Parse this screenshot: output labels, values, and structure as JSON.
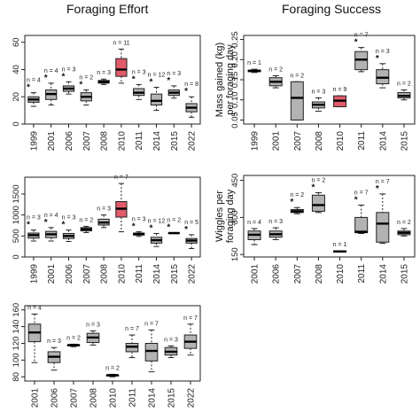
{
  "columns": {
    "left": "Foraging Effort",
    "right": "Foraging Success"
  },
  "colors": {
    "box": "#b3b3b3",
    "highlight": "#e05a6a",
    "line": "#222222"
  },
  "chart_data": [
    {
      "id": "p1",
      "type": "boxplot",
      "ylabel": "",
      "ylim": [
        0,
        65
      ],
      "yticks": [
        0,
        20,
        40,
        60
      ],
      "categories": [
        "1999",
        "2001",
        "2006",
        "2007",
        "2008",
        "2010",
        "2011",
        "2014",
        "2015",
        "2022"
      ],
      "boxes": [
        {
          "min": 13,
          "q1": 16,
          "median": 18,
          "q3": 20,
          "max": 23,
          "n": "n = 4",
          "star": true
        },
        {
          "min": 14,
          "q1": 18,
          "median": 22,
          "q3": 25,
          "max": 30,
          "n": "n = 4",
          "star": true
        },
        {
          "min": 22,
          "q1": 24,
          "median": 26,
          "q3": 28,
          "max": 31,
          "n": "n = 3",
          "star": true
        },
        {
          "min": 14,
          "q1": 17,
          "median": 20,
          "q3": 23,
          "max": 25,
          "n": "n = 2",
          "star": true
        },
        {
          "min": 29,
          "q1": 30,
          "median": 31,
          "q3": 32,
          "max": 33,
          "n": "n = 3",
          "star": false
        },
        {
          "min": 30,
          "q1": 35,
          "median": 40,
          "q3": 48,
          "max": 55,
          "n": "n = 11",
          "star": false,
          "highlight": true
        },
        {
          "min": 18,
          "q1": 21,
          "median": 23,
          "q3": 26,
          "max": 29,
          "n": "n = 3",
          "star": true
        },
        {
          "min": 10,
          "q1": 14,
          "median": 17,
          "q3": 22,
          "max": 27,
          "n": "n = 12",
          "star": true
        },
        {
          "min": 19,
          "q1": 21,
          "median": 23,
          "q3": 25,
          "max": 28,
          "n": "n = 3",
          "star": true
        },
        {
          "min": 5,
          "q1": 9,
          "median": 12,
          "q3": 15,
          "max": 20,
          "n": "n = 8",
          "star": true
        }
      ]
    },
    {
      "id": "p2",
      "type": "boxplot",
      "ylabel": "",
      "ylim": [
        0,
        1900
      ],
      "yticks": [
        0,
        500,
        1000,
        1500
      ],
      "categories": [
        "1999",
        "2001",
        "2006",
        "2007",
        "2008",
        "2010",
        "2011",
        "2014",
        "2015",
        "2022"
      ],
      "boxes": [
        {
          "min": 380,
          "q1": 450,
          "median": 520,
          "q3": 570,
          "max": 640,
          "n": "n = 3",
          "star": true
        },
        {
          "min": 380,
          "q1": 460,
          "median": 540,
          "q3": 610,
          "max": 700,
          "n": "n = 4",
          "star": true
        },
        {
          "min": 370,
          "q1": 440,
          "median": 500,
          "q3": 560,
          "max": 640,
          "n": "n = 3",
          "star": true
        },
        {
          "min": 580,
          "q1": 620,
          "median": 660,
          "q3": 700,
          "max": 730,
          "n": "n = 2",
          "star": false
        },
        {
          "min": 700,
          "q1": 760,
          "median": 820,
          "q3": 900,
          "max": 1000,
          "n": "n = 3",
          "star": false
        },
        {
          "min": 600,
          "q1": 950,
          "median": 1150,
          "q3": 1320,
          "max": 1750,
          "n": "n = 7",
          "star": false,
          "highlight": true
        },
        {
          "min": 490,
          "q1": 520,
          "median": 550,
          "q3": 570,
          "max": 600,
          "n": "n = 3",
          "star": true
        },
        {
          "min": 250,
          "q1": 330,
          "median": 400,
          "q3": 470,
          "max": 560,
          "n": "n = 12",
          "star": true
        },
        {
          "min": 560,
          "q1": 565,
          "median": 570,
          "q3": 575,
          "max": 580,
          "n": "n = 2",
          "star": true
        },
        {
          "min": 200,
          "q1": 330,
          "median": 390,
          "q3": 440,
          "max": 530,
          "n": "n = 5",
          "star": true
        }
      ]
    },
    {
      "id": "p3",
      "type": "boxplot",
      "ylabel": "",
      "ylim": [
        75,
        165
      ],
      "yticks": [
        80,
        100,
        120,
        140,
        160
      ],
      "categories": [
        "2001",
        "2006",
        "2007",
        "2008",
        "2010",
        "2011",
        "2014",
        "2015",
        "2022"
      ],
      "boxes": [
        {
          "min": 97,
          "q1": 122,
          "median": 133,
          "q3": 143,
          "max": 155,
          "n": "n = 4",
          "star": false
        },
        {
          "min": 88,
          "q1": 97,
          "median": 104,
          "q3": 110,
          "max": 115,
          "n": "n = 3",
          "star": false
        },
        {
          "min": 116,
          "q1": 117,
          "median": 118,
          "q3": 118,
          "max": 119,
          "n": "n = 2",
          "star": false
        },
        {
          "min": 118,
          "q1": 121,
          "median": 127,
          "q3": 132,
          "max": 135,
          "n": "n = 3",
          "star": false
        },
        {
          "min": 80,
          "q1": 81,
          "median": 82,
          "q3": 82,
          "max": 83,
          "n": "n = 2",
          "star": false,
          "highlight": true
        },
        {
          "min": 103,
          "q1": 110,
          "median": 116,
          "q3": 120,
          "max": 130,
          "n": "n = 7",
          "star": false
        },
        {
          "min": 86,
          "q1": 99,
          "median": 111,
          "q3": 120,
          "max": 136,
          "n": "n = 7",
          "star": false
        },
        {
          "min": 103,
          "q1": 106,
          "median": 110,
          "q3": 115,
          "max": 117,
          "n": "n = 3",
          "star": false
        },
        {
          "min": 106,
          "q1": 114,
          "median": 122,
          "q3": 130,
          "max": 143,
          "n": "n = 7",
          "star": false
        }
      ]
    },
    {
      "id": "p4",
      "type": "boxplot",
      "ylabel": "Mass gained (kg)\nper foraging day",
      "ylim": [
        0.04,
        0.26
      ],
      "yticks": [
        0.05,
        0.1,
        0.15,
        0.2,
        0.25
      ],
      "categories": [
        "1999",
        "2001",
        "2007",
        "2008",
        "2010",
        "2011",
        "2014",
        "2015"
      ],
      "boxes": [
        {
          "min": 0.168,
          "q1": 0.17,
          "median": 0.172,
          "q3": 0.174,
          "max": 0.176,
          "n": "n = 1",
          "star": false
        },
        {
          "min": 0.13,
          "q1": 0.135,
          "median": 0.145,
          "q3": 0.155,
          "max": 0.16,
          "n": "n = 2",
          "star": false
        },
        {
          "min": 0.05,
          "q1": 0.05,
          "median": 0.105,
          "q3": 0.145,
          "max": 0.145,
          "n": "n = 2",
          "star": false
        },
        {
          "min": 0.072,
          "q1": 0.08,
          "median": 0.088,
          "q3": 0.095,
          "max": 0.105,
          "n": "n = 3",
          "star": false
        },
        {
          "min": 0.083,
          "q1": 0.083,
          "median": 0.098,
          "q3": 0.11,
          "max": 0.11,
          "n": "n = 9",
          "star": false,
          "highlight": true
        },
        {
          "min": 0.17,
          "q1": 0.175,
          "median": 0.2,
          "q3": 0.22,
          "max": 0.23,
          "n": "n = 7",
          "star": true
        },
        {
          "min": 0.13,
          "q1": 0.14,
          "median": 0.155,
          "q3": 0.175,
          "max": 0.19,
          "n": "n = 3",
          "star": true
        },
        {
          "min": 0.1,
          "q1": 0.105,
          "median": 0.11,
          "q3": 0.118,
          "max": 0.125,
          "n": "n = 2",
          "star": false
        }
      ]
    },
    {
      "id": "p5",
      "type": "boxplot",
      "ylabel": "Wiggles per\nforaging day",
      "ylim": [
        140,
        470
      ],
      "yticks": [
        150,
        300,
        450
      ],
      "categories": [
        "2001",
        "2006",
        "2007",
        "2008",
        "2010",
        "2011",
        "2014",
        "2015"
      ],
      "boxes": [
        {
          "min": 190,
          "q1": 210,
          "median": 230,
          "q3": 245,
          "max": 255,
          "n": "n = 4",
          "star": false
        },
        {
          "min": 210,
          "q1": 220,
          "median": 232,
          "q3": 245,
          "max": 258,
          "n": "n = 3",
          "star": false
        },
        {
          "min": 315,
          "q1": 320,
          "median": 325,
          "q3": 332,
          "max": 340,
          "n": "n = 2",
          "star": true
        },
        {
          "min": 320,
          "q1": 325,
          "median": 350,
          "q3": 390,
          "max": 400,
          "n": "n = 2",
          "star": true
        },
        {
          "min": 160,
          "q1": 160,
          "median": 162,
          "q3": 165,
          "max": 165,
          "n": "n = 1",
          "star": false,
          "highlight": true
        },
        {
          "min": 235,
          "q1": 238,
          "median": 242,
          "q3": 300,
          "max": 350,
          "n": "n = 7",
          "star": true
        },
        {
          "min": 195,
          "q1": 200,
          "median": 275,
          "q3": 320,
          "max": 395,
          "n": "n = 7",
          "star": true
        },
        {
          "min": 225,
          "q1": 230,
          "median": 238,
          "q3": 245,
          "max": 255,
          "n": "n = 2",
          "star": false
        }
      ]
    }
  ]
}
